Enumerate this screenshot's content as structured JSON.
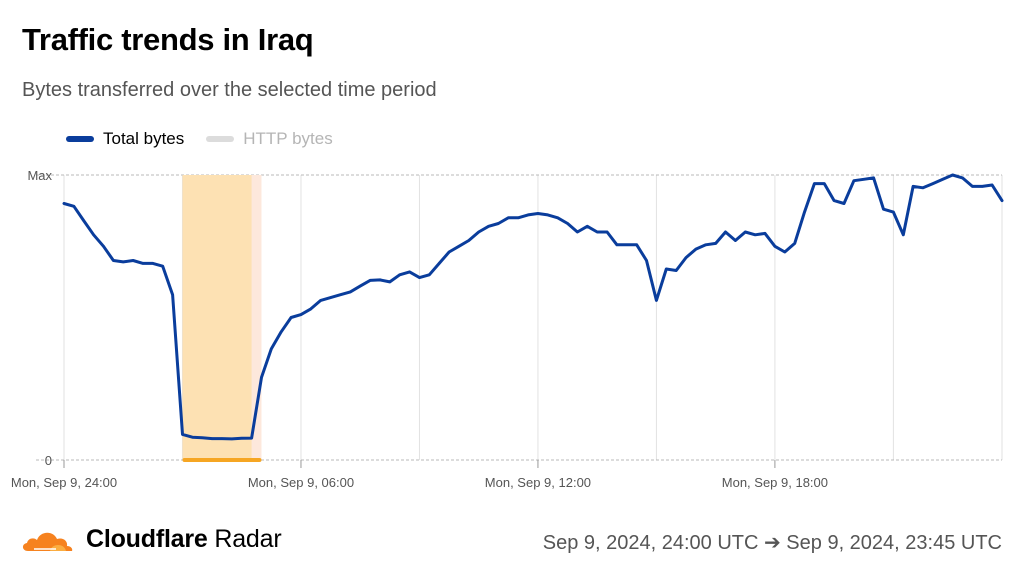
{
  "header": {
    "title": "Traffic trends in Iraq",
    "subtitle": "Bytes transferred over the selected time period"
  },
  "legend": [
    {
      "label": "Total bytes",
      "color": "#0a3d9c",
      "active": true
    },
    {
      "label": "HTTP bytes",
      "color": "#dcdcdc",
      "active": false
    }
  ],
  "footer": {
    "brand_bold": "Cloudflare",
    "brand_rest": " Radar",
    "range": "Sep 9, 2024, 24:00 UTC ➔ Sep 9, 2024, 23:45 UTC"
  },
  "chart_data": {
    "type": "line",
    "title": "Traffic trends in Iraq",
    "subtitle": "Bytes transferred over the selected time period",
    "xlabel": "",
    "ylabel": "",
    "x_unit": "hours since Sep 9, 24:00",
    "xlim": [
      0,
      23.75
    ],
    "ylim": [
      0,
      1
    ],
    "y_ticks": [
      {
        "value": 0,
        "label": "0"
      },
      {
        "value": 1,
        "label": "Max"
      }
    ],
    "x_ticks": [
      {
        "value": 0,
        "label": "Mon, Sep 9, 24:00"
      },
      {
        "value": 6,
        "label": "Mon, Sep 9, 06:00"
      },
      {
        "value": 12,
        "label": "Mon, Sep 9, 12:00"
      },
      {
        "value": 18,
        "label": "Mon, Sep 9, 18:00"
      }
    ],
    "x_gridlines": [
      0,
      3,
      6,
      9,
      12,
      15,
      18,
      21
    ],
    "highlight": {
      "start": 3.0,
      "end": 5.0,
      "core_end": 4.75,
      "color": "#fde1b3",
      "edge_color": "#fde8dc",
      "marker_color": "#f6a623"
    },
    "series": [
      {
        "name": "Total bytes",
        "color": "#0a3d9c",
        "x": [
          0,
          0.25,
          0.5,
          0.75,
          1,
          1.25,
          1.5,
          1.75,
          2,
          2.25,
          2.5,
          2.75,
          3,
          3.25,
          3.5,
          3.75,
          4,
          4.25,
          4.5,
          4.75,
          5,
          5.25,
          5.5,
          5.75,
          6,
          6.25,
          6.5,
          6.75,
          7,
          7.25,
          7.5,
          7.75,
          8,
          8.25,
          8.5,
          8.75,
          9,
          9.25,
          9.5,
          9.75,
          10,
          10.25,
          10.5,
          10.75,
          11,
          11.25,
          11.5,
          11.75,
          12,
          12.25,
          12.5,
          12.75,
          13,
          13.25,
          13.5,
          13.75,
          14,
          14.25,
          14.5,
          14.75,
          15,
          15.25,
          15.5,
          15.75,
          16,
          16.25,
          16.5,
          16.75,
          17,
          17.25,
          17.5,
          17.75,
          18,
          18.25,
          18.5,
          18.75,
          19,
          19.25,
          19.5,
          19.75,
          20,
          20.25,
          20.5,
          20.75,
          21,
          21.25,
          21.5,
          21.75,
          22,
          22.25,
          22.5,
          22.75,
          23,
          23.25,
          23.5,
          23.75
        ],
        "values": [
          0.9,
          0.89,
          0.84,
          0.79,
          0.75,
          0.7,
          0.695,
          0.7,
          0.69,
          0.69,
          0.68,
          0.58,
          0.09,
          0.08,
          0.078,
          0.075,
          0.075,
          0.074,
          0.076,
          0.077,
          0.29,
          0.39,
          0.45,
          0.5,
          0.51,
          0.53,
          0.56,
          0.57,
          0.58,
          0.59,
          0.61,
          0.63,
          0.632,
          0.625,
          0.65,
          0.66,
          0.64,
          0.65,
          0.69,
          0.73,
          0.75,
          0.77,
          0.8,
          0.82,
          0.83,
          0.85,
          0.85,
          0.86,
          0.865,
          0.86,
          0.85,
          0.83,
          0.8,
          0.82,
          0.8,
          0.8,
          0.755,
          0.755,
          0.755,
          0.7,
          0.56,
          0.67,
          0.665,
          0.71,
          0.74,
          0.755,
          0.76,
          0.8,
          0.77,
          0.8,
          0.79,
          0.795,
          0.75,
          0.73,
          0.76,
          0.87,
          0.97,
          0.97,
          0.91,
          0.9,
          0.98,
          0.985,
          0.99,
          0.88,
          0.87,
          0.79,
          0.96,
          0.955,
          0.97,
          0.985,
          1.0,
          0.99,
          0.96,
          0.96,
          0.965,
          0.91
        ]
      }
    ]
  }
}
